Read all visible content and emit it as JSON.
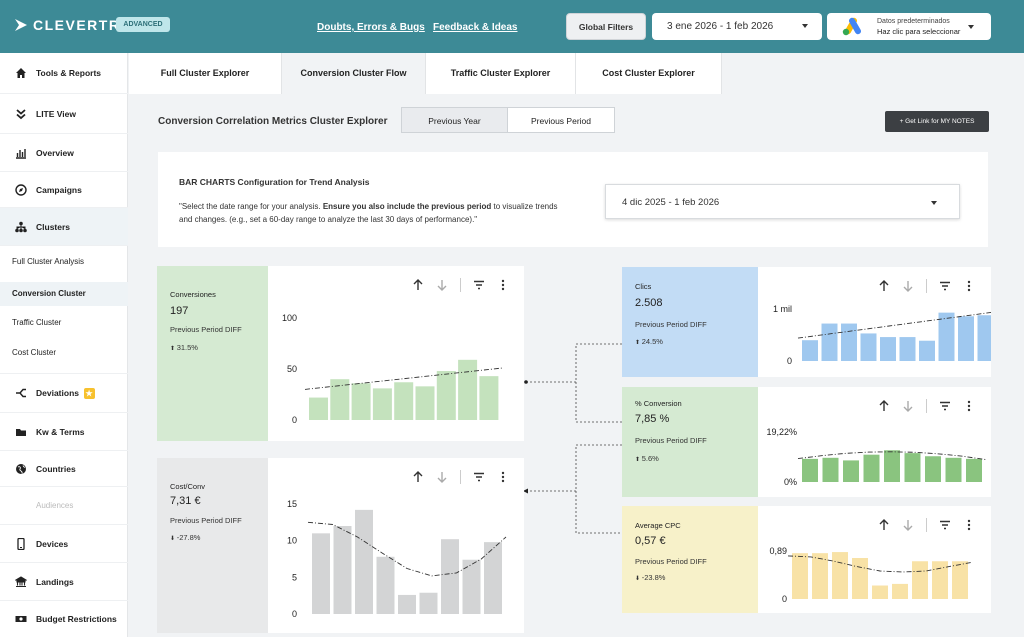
{
  "header": {
    "brand": "CLEVERTREK",
    "badge": "ADVANCED",
    "links": [
      "Doubts, Errors & Bugs",
      "Feedback & Ideas"
    ],
    "global_filters": "Global Filters",
    "date_range": "3 ene 2026 - 1 feb 2026",
    "ads_line1": "Datos predeterminados",
    "ads_line2": "Haz clic para seleccionar",
    "colors": {
      "bar": "#3d8a96"
    }
  },
  "sidebar": {
    "items": [
      {
        "label": "Tools & Reports",
        "icon": "home-icon"
      },
      {
        "label": "LITE View",
        "icon": "double-chevron-down-icon"
      },
      {
        "label": "Overview",
        "icon": "bar-chart-icon"
      },
      {
        "label": "Campaigns",
        "icon": "compass-icon"
      },
      {
        "label": "Clusters",
        "icon": "sitemap-icon"
      }
    ],
    "sub_items": [
      "Full Cluster Analysis",
      "Conversion Cluster",
      "Traffic Cluster",
      "Cost Cluster"
    ],
    "items2": [
      {
        "label": "Deviations",
        "icon": "split-arrow-icon"
      },
      {
        "label": "Kw & Terms",
        "icon": "folder-icon"
      },
      {
        "label": "Countries",
        "icon": "globe-icon"
      },
      {
        "label": "Audiences",
        "icon": ""
      },
      {
        "label": "Devices",
        "icon": "mobile-icon"
      },
      {
        "label": "Landings",
        "icon": "landmark-icon"
      },
      {
        "label": "Budget Restrictions",
        "icon": "money-icon"
      }
    ]
  },
  "tabs": [
    "Full Cluster Explorer",
    "Conversion Cluster Flow",
    "Traffic Cluster Explorer",
    "Cost Cluster Explorer"
  ],
  "section": {
    "title": "Conversion Correlation Metrics Cluster Explorer",
    "toggle": [
      "Previous Year",
      "Previous Period"
    ],
    "link_button": "+ Get Link for MY NOTES"
  },
  "config": {
    "title": "BAR CHARTS Configuration for Trend Analysis",
    "desc_part1": "\"Select the date range for your analysis. ",
    "desc_bold": "Ensure you also include the previous period",
    "desc_part2": " to visualize trends and changes. (e.g., set a 60-day range to analyze the last 30 days of performance).\"",
    "date_range": "4 dic 2025 - 1 feb 2026"
  },
  "metrics": [
    {
      "id": "conversiones",
      "title": "Conversiones",
      "value": "197",
      "diff_label": "Previous Period DIFF",
      "diff": "31.5%",
      "direction": "up",
      "bg": "#d5ead2",
      "bar": "#c4e2bd",
      "chart_data": {
        "type": "bar",
        "values": [
          22,
          40,
          36,
          31,
          37,
          33,
          48,
          59,
          43
        ],
        "ylim": [
          0,
          100
        ],
        "ticks": [
          "100",
          "50",
          "0"
        ],
        "tick_values": [
          100,
          50,
          0
        ],
        "trend": [
          30,
          51
        ]
      }
    },
    {
      "id": "cost_conv",
      "title": "Cost/Conv",
      "value": "7,31 €",
      "diff_label": "Previous Period DIFF",
      "diff": "-27.8%",
      "direction": "down",
      "bg": "#e8e9ea",
      "bar": "#d3d4d5",
      "chart_data": {
        "type": "bar",
        "values": [
          11,
          12,
          14.2,
          7.8,
          2.6,
          2.9,
          10.2,
          7.4,
          9.8
        ],
        "ylim": [
          0,
          15
        ],
        "ticks": [
          "15",
          "10",
          "5",
          "0"
        ],
        "tick_values": [
          15,
          10,
          5,
          0
        ],
        "trend": [
          12.5,
          12.2,
          10.5,
          8.3,
          6.2,
          5.2,
          5.6,
          7.5,
          10.5
        ]
      }
    },
    {
      "id": "clics",
      "title": "Clics",
      "value": "2.508",
      "diff_label": "Previous Period DIFF",
      "diff": "24.5%",
      "direction": "up",
      "bg": "#c2dcf5",
      "bar": "#9fc8ef",
      "chart_data": {
        "type": "bar",
        "values": [
          400,
          720,
          720,
          530,
          460,
          460,
          390,
          930,
          860,
          880
        ],
        "ylim": [
          0,
          1000
        ],
        "ticks": [
          "1 mil",
          "0"
        ],
        "tick_values": [
          1000,
          0
        ],
        "trend": [
          440,
          950
        ]
      }
    },
    {
      "id": "pct_conversion",
      "title": "% Conversion",
      "value": "7,85 %",
      "diff_label": "Previous Period DIFF",
      "diff": "5.6%",
      "direction": "up",
      "bg": "#d5ead2",
      "bar": "#8ac47f",
      "chart_data": {
        "type": "bar",
        "values": [
          8.9,
          9.3,
          8.3,
          10.5,
          12.2,
          11.1,
          9.9,
          9.3,
          8.9
        ],
        "ylim": [
          0,
          19.22
        ],
        "ticks": [
          "19,22%",
          "0%"
        ],
        "tick_values": [
          19.22,
          0
        ],
        "trend": [
          9.0,
          10.1,
          11.0,
          11.5,
          11.6,
          11.4,
          10.8,
          9.9,
          8.6
        ]
      }
    },
    {
      "id": "avg_cpc",
      "title": "Average CPC",
      "value": "0,57 €",
      "diff_label": "Previous Period DIFF",
      "diff": "-23.8%",
      "direction": "down",
      "bg": "#f7f1c9",
      "bar": "#f8e2a6",
      "chart_data": {
        "type": "bar",
        "values": [
          0.85,
          0.85,
          0.87,
          0.76,
          0.25,
          0.28,
          0.7,
          0.7,
          0.7
        ],
        "ylim": [
          0,
          0.89
        ],
        "ticks": [
          "0,89",
          "0"
        ],
        "tick_values": [
          0.89,
          0
        ],
        "trend": [
          0.8,
          0.78,
          0.7,
          0.6,
          0.52,
          0.5,
          0.52,
          0.6,
          0.68
        ]
      }
    }
  ]
}
